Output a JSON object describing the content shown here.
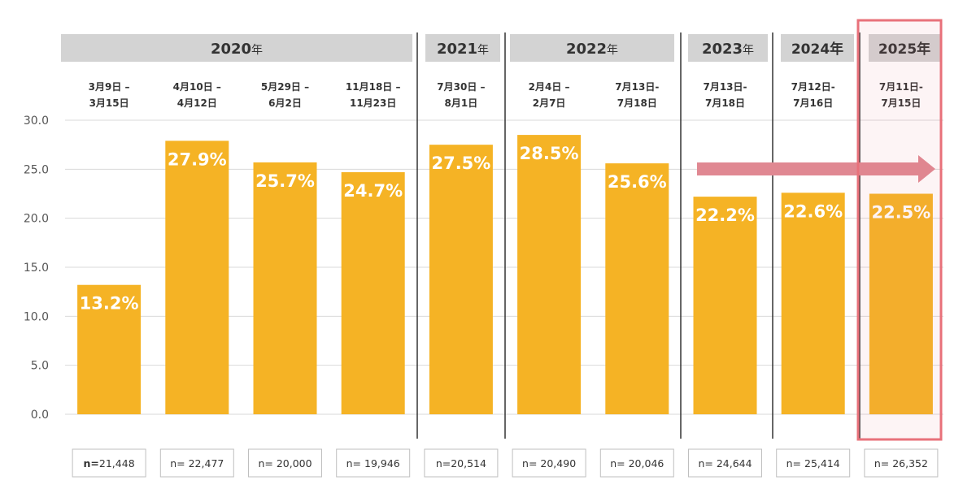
{
  "colors": {
    "bar": "#F5B325",
    "year_header": "#D3D3D3",
    "highlight_border": "#E8717A",
    "arrow": "#E08892",
    "gridline": "#D9D9D9",
    "separator": "#333333"
  },
  "year_groups": [
    {
      "year": "2020",
      "suffix": "年"
    },
    {
      "year": "2021",
      "suffix": "年"
    },
    {
      "year": "2022",
      "suffix": "年"
    },
    {
      "year": "2023",
      "suffix": "年"
    },
    {
      "year": "2024年",
      "suffix": ""
    },
    {
      "year": "2025年",
      "suffix": ""
    }
  ],
  "highlighted_group": "2025年",
  "trend_arrow": {
    "from": "2023",
    "to": "2025",
    "direction": "right"
  },
  "chart_data": {
    "type": "bar",
    "categories": [
      {
        "group": 0,
        "line1": "3月9日 –",
        "line2": "3月15日",
        "n": "21,448",
        "n_prefix": "n="
      },
      {
        "group": 0,
        "line1": "4月10日 –",
        "line2": "4月12日",
        "n": "22,477",
        "n_prefix": "n= "
      },
      {
        "group": 0,
        "line1": "5月29日 –",
        "line2": "6月2日",
        "n": "20,000",
        "n_prefix": "n= "
      },
      {
        "group": 0,
        "line1": "11月18日 –",
        "line2": "11月23日",
        "n": "19,946",
        "n_prefix": "n= "
      },
      {
        "group": 1,
        "line1": "7月30日 –",
        "line2": "8月1日",
        "n": "20,514",
        "n_prefix": "n="
      },
      {
        "group": 2,
        "line1": "2月4日 –",
        "line2": "2月7日",
        "n": "20,490",
        "n_prefix": "n= "
      },
      {
        "group": 2,
        "line1": "7月13日-",
        "line2": "7月18日",
        "n": "20,046",
        "n_prefix": "n= "
      },
      {
        "group": 3,
        "line1": "7月13日-",
        "line2": "7月18日",
        "n": "24,644",
        "n_prefix": "n= "
      },
      {
        "group": 4,
        "line1": "7月12日-",
        "line2": "7月16日",
        "n": "25,414",
        "n_prefix": "n= "
      },
      {
        "group": 5,
        "line1": "7月11日-",
        "line2": "7月15日",
        "n": "26,352",
        "n_prefix": "n= "
      }
    ],
    "values": [
      13.2,
      27.9,
      25.7,
      24.7,
      27.5,
      28.5,
      25.6,
      22.2,
      22.6,
      22.5
    ],
    "data_labels": [
      "13.2%",
      "27.9%",
      "25.7%",
      "24.7%",
      "27.5%",
      "28.5%",
      "25.6%",
      "22.2%",
      "22.6%",
      "22.5%"
    ],
    "yticks": [
      "0.0",
      "5.0",
      "10.0",
      "15.0",
      "20.0",
      "25.0",
      "30.0"
    ],
    "ylim": [
      0,
      30
    ],
    "grid": true,
    "title": "",
    "xlabel": "",
    "ylabel": ""
  }
}
